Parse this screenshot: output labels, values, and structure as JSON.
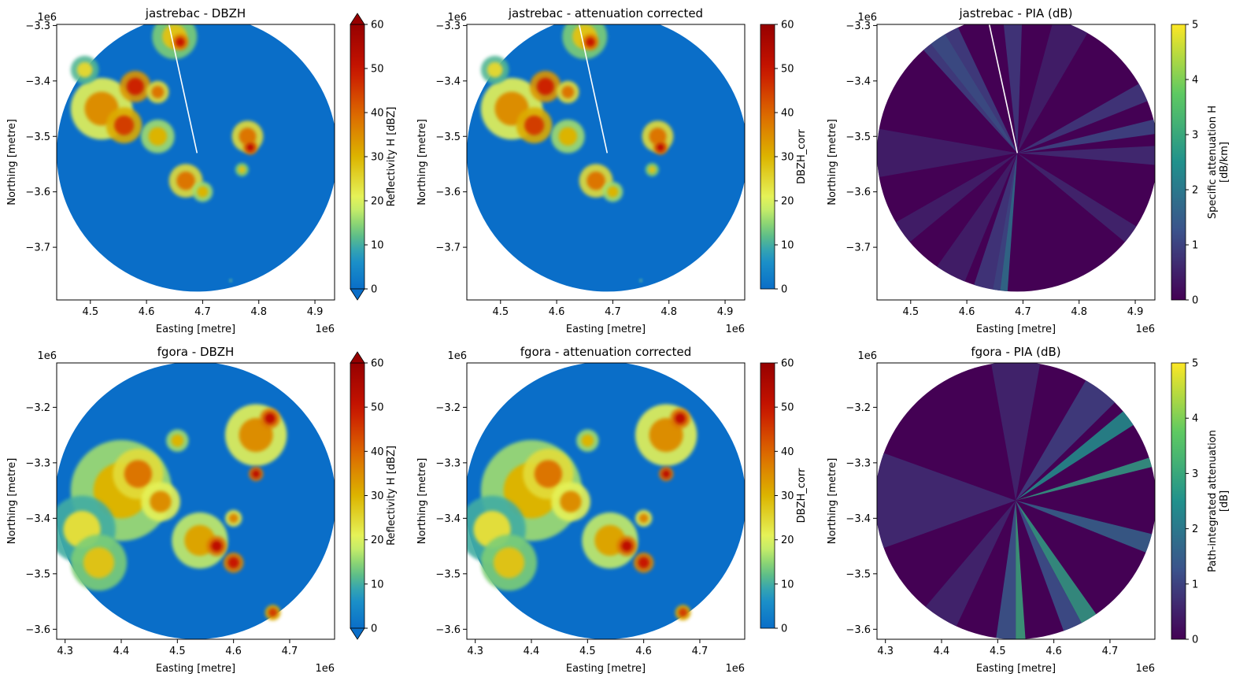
{
  "figure": {
    "colors": {
      "radar_background": "#0a6ec8",
      "axis": "#000000"
    }
  },
  "chart_data": [
    {
      "type": "heatmap",
      "title": "jastrebac - DBZH",
      "xlabel": "Easting [metre]",
      "ylabel": "Northing [metre]",
      "x_offset_label": "1e6",
      "y_offset_label": "1e6",
      "xlim": [
        4.44,
        4.935
      ],
      "ylim": [
        -3.795,
        -3.298
      ],
      "xticks": [
        "4.5",
        "4.6",
        "4.7",
        "4.8",
        "4.9"
      ],
      "xtick_values": [
        4.5,
        4.6,
        4.7,
        4.8,
        4.9
      ],
      "yticks": [
        "−3.3",
        "−3.4",
        "−3.5",
        "−3.6",
        "−3.7"
      ],
      "ytick_values": [
        -3.3,
        -3.4,
        -3.5,
        -3.6,
        -3.7
      ],
      "radar_center": [
        4.69,
        -3.53
      ],
      "radar_radius": 0.25,
      "colorbar": {
        "label": "Reflectivity H [dBZ]",
        "colormap": "reflectivity",
        "ticks": [
          "0",
          "10",
          "20",
          "30",
          "40",
          "50",
          "60"
        ],
        "range": [
          0,
          60
        ],
        "extend": true
      },
      "echo_cells": [
        {
          "x": 4.52,
          "y": -3.45,
          "r": 0.055,
          "value": 35
        },
        {
          "x": 4.58,
          "y": -3.41,
          "r": 0.028,
          "value": 48
        },
        {
          "x": 4.56,
          "y": -3.48,
          "r": 0.032,
          "value": 45
        },
        {
          "x": 4.65,
          "y": -3.32,
          "r": 0.04,
          "value": 28
        },
        {
          "x": 4.66,
          "y": -3.33,
          "r": 0.015,
          "value": 50
        },
        {
          "x": 4.49,
          "y": -3.38,
          "r": 0.025,
          "value": 25
        },
        {
          "x": 4.62,
          "y": -3.5,
          "r": 0.03,
          "value": 30
        },
        {
          "x": 4.67,
          "y": -3.58,
          "r": 0.03,
          "value": 38
        },
        {
          "x": 4.78,
          "y": -3.5,
          "r": 0.028,
          "value": 38
        },
        {
          "x": 4.785,
          "y": -3.52,
          "r": 0.013,
          "value": 52
        },
        {
          "x": 4.7,
          "y": -3.6,
          "r": 0.018,
          "value": 30
        },
        {
          "x": 4.77,
          "y": -3.56,
          "r": 0.012,
          "value": 28
        },
        {
          "x": 4.62,
          "y": -3.42,
          "r": 0.02,
          "value": 38
        },
        {
          "x": 4.75,
          "y": -3.76,
          "r": 0.003,
          "value": 22
        }
      ],
      "gap_beam_end": [
        4.64,
        -3.298
      ]
    },
    {
      "type": "heatmap",
      "title": "jastrebac - attenuation corrected",
      "xlabel": "Easting [metre]",
      "ylabel": "Northing [metre]",
      "x_offset_label": "1e6",
      "y_offset_label": "1e6",
      "xlim": [
        4.44,
        4.935
      ],
      "ylim": [
        -3.795,
        -3.298
      ],
      "xticks": [
        "4.5",
        "4.6",
        "4.7",
        "4.8",
        "4.9"
      ],
      "xtick_values": [
        4.5,
        4.6,
        4.7,
        4.8,
        4.9
      ],
      "yticks": [
        "−3.3",
        "−3.4",
        "−3.5",
        "−3.6",
        "−3.7"
      ],
      "ytick_values": [
        -3.3,
        -3.4,
        -3.5,
        -3.6,
        -3.7
      ],
      "radar_center": [
        4.69,
        -3.53
      ],
      "radar_radius": 0.25,
      "colorbar": {
        "label": "DBZH_corr",
        "colormap": "reflectivity",
        "ticks": [
          "0",
          "10",
          "20",
          "30",
          "40",
          "50",
          "60"
        ],
        "range": [
          0,
          60
        ],
        "extend": false
      },
      "echo_cells": [
        {
          "x": 4.52,
          "y": -3.45,
          "r": 0.055,
          "value": 35
        },
        {
          "x": 4.58,
          "y": -3.41,
          "r": 0.028,
          "value": 48
        },
        {
          "x": 4.56,
          "y": -3.48,
          "r": 0.032,
          "value": 45
        },
        {
          "x": 4.65,
          "y": -3.32,
          "r": 0.04,
          "value": 28
        },
        {
          "x": 4.66,
          "y": -3.33,
          "r": 0.015,
          "value": 50
        },
        {
          "x": 4.49,
          "y": -3.38,
          "r": 0.025,
          "value": 25
        },
        {
          "x": 4.62,
          "y": -3.5,
          "r": 0.03,
          "value": 30
        },
        {
          "x": 4.67,
          "y": -3.58,
          "r": 0.03,
          "value": 38
        },
        {
          "x": 4.78,
          "y": -3.5,
          "r": 0.028,
          "value": 38
        },
        {
          "x": 4.785,
          "y": -3.52,
          "r": 0.013,
          "value": 52
        },
        {
          "x": 4.7,
          "y": -3.6,
          "r": 0.018,
          "value": 30
        },
        {
          "x": 4.77,
          "y": -3.56,
          "r": 0.012,
          "value": 28
        },
        {
          "x": 4.62,
          "y": -3.42,
          "r": 0.02,
          "value": 38
        },
        {
          "x": 4.75,
          "y": -3.76,
          "r": 0.003,
          "value": 22
        }
      ],
      "gap_beam_end": [
        4.64,
        -3.298
      ]
    },
    {
      "type": "heatmap",
      "title": "jastrebac - PIA (dB)",
      "xlabel": "Easting [metre]",
      "ylabel": "Northing [metre]",
      "x_offset_label": "1e6",
      "y_offset_label": "1e6",
      "xlim": [
        4.44,
        4.935
      ],
      "ylim": [
        -3.795,
        -3.298
      ],
      "xticks": [
        "4.5",
        "4.6",
        "4.7",
        "4.8",
        "4.9"
      ],
      "xtick_values": [
        4.5,
        4.6,
        4.7,
        4.8,
        4.9
      ],
      "yticks": [
        "−3.3",
        "−3.4",
        "−3.5",
        "−3.6",
        "−3.7"
      ],
      "ytick_values": [
        -3.3,
        -3.4,
        -3.5,
        -3.6,
        -3.7
      ],
      "radar_center": [
        4.69,
        -3.53
      ],
      "radar_radius": 0.25,
      "colorbar": {
        "label": "Specific attenuation H [dB/km]",
        "colormap": "viridis",
        "ticks": [
          "0",
          "1",
          "2",
          "3",
          "4",
          "5"
        ],
        "range": [
          0,
          5
        ],
        "extend": false
      },
      "beams": [
        {
          "from_deg": 121,
          "to_deg": 128,
          "value": 2.2
        },
        {
          "from_deg": 115,
          "to_deg": 132,
          "value": 1.0
        },
        {
          "from_deg": 88,
          "to_deg": 96,
          "value": 0.9
        },
        {
          "from_deg": 8,
          "to_deg": 14,
          "value": 1.1
        },
        {
          "from_deg": 22,
          "to_deg": 30,
          "value": 0.9
        },
        {
          "from_deg": -5,
          "to_deg": 3,
          "value": 0.7
        },
        {
          "from_deg": -100,
          "to_deg": -94,
          "value": 1.9
        },
        {
          "from_deg": -108,
          "to_deg": -97,
          "value": 0.9
        },
        {
          "from_deg": -125,
          "to_deg": -112,
          "value": 0.5
        },
        {
          "from_deg": -150,
          "to_deg": -140,
          "value": 0.5
        },
        {
          "from_deg": -40,
          "to_deg": -32,
          "value": 0.6
        },
        {
          "from_deg": 170,
          "to_deg": 190,
          "value": 0.5
        },
        {
          "from_deg": 60,
          "to_deg": 75,
          "value": 0.5
        }
      ],
      "gap_beam_end": [
        4.64,
        -3.298
      ]
    },
    {
      "type": "heatmap",
      "title": "fgora - DBZH",
      "xlabel": "Easting [metre]",
      "ylabel": "Northing [metre]",
      "x_offset_label": "1e6",
      "y_offset_label": "1e6",
      "xlim": [
        4.285,
        4.78
      ],
      "ylim": [
        -3.618,
        -3.12
      ],
      "xticks": [
        "4.3",
        "4.4",
        "4.5",
        "4.6",
        "4.7"
      ],
      "xtick_values": [
        4.3,
        4.4,
        4.5,
        4.6,
        4.7
      ],
      "yticks": [
        "−3.2",
        "−3.3",
        "−3.4",
        "−3.5",
        "−3.6"
      ],
      "ytick_values": [
        -3.2,
        -3.3,
        -3.4,
        -3.5,
        -3.6
      ],
      "radar_center": [
        4.532,
        -3.368
      ],
      "radar_radius": 0.25,
      "colorbar": {
        "label": "Reflectivity H [dBZ]",
        "colormap": "reflectivity",
        "ticks": [
          "0",
          "10",
          "20",
          "30",
          "40",
          "50",
          "60"
        ],
        "range": [
          0,
          60
        ],
        "extend": true
      },
      "echo_cells": [
        {
          "x": 4.4,
          "y": -3.35,
          "r": 0.09,
          "value": 30
        },
        {
          "x": 4.33,
          "y": -3.42,
          "r": 0.06,
          "value": 24
        },
        {
          "x": 4.36,
          "y": -3.48,
          "r": 0.05,
          "value": 28
        },
        {
          "x": 4.43,
          "y": -3.32,
          "r": 0.045,
          "value": 38
        },
        {
          "x": 4.47,
          "y": -3.37,
          "r": 0.035,
          "value": 35
        },
        {
          "x": 4.54,
          "y": -3.44,
          "r": 0.05,
          "value": 32
        },
        {
          "x": 4.57,
          "y": -3.45,
          "r": 0.018,
          "value": 52
        },
        {
          "x": 4.6,
          "y": -3.48,
          "r": 0.018,
          "value": 50
        },
        {
          "x": 4.64,
          "y": -3.25,
          "r": 0.055,
          "value": 35
        },
        {
          "x": 4.665,
          "y": -3.22,
          "r": 0.018,
          "value": 52
        },
        {
          "x": 4.64,
          "y": -3.32,
          "r": 0.013,
          "value": 52
        },
        {
          "x": 4.67,
          "y": -3.57,
          "r": 0.014,
          "value": 45
        },
        {
          "x": 4.5,
          "y": -3.26,
          "r": 0.02,
          "value": 30
        },
        {
          "x": 4.6,
          "y": -3.4,
          "r": 0.015,
          "value": 36
        }
      ]
    },
    {
      "type": "heatmap",
      "title": "fgora - attenuation corrected",
      "xlabel": "Easting [metre]",
      "ylabel": "Northing [metre]",
      "x_offset_label": "1e6",
      "y_offset_label": "1e6",
      "xlim": [
        4.285,
        4.78
      ],
      "ylim": [
        -3.618,
        -3.12
      ],
      "xticks": [
        "4.3",
        "4.4",
        "4.5",
        "4.6",
        "4.7"
      ],
      "xtick_values": [
        4.3,
        4.4,
        4.5,
        4.6,
        4.7
      ],
      "yticks": [
        "−3.2",
        "−3.3",
        "−3.4",
        "−3.5",
        "−3.6"
      ],
      "ytick_values": [
        -3.2,
        -3.3,
        -3.4,
        -3.5,
        -3.6
      ],
      "radar_center": [
        4.532,
        -3.368
      ],
      "radar_radius": 0.25,
      "colorbar": {
        "label": "DBZH_corr",
        "colormap": "reflectivity",
        "ticks": [
          "0",
          "10",
          "20",
          "30",
          "40",
          "50",
          "60"
        ],
        "range": [
          0,
          60
        ],
        "extend": false
      },
      "echo_cells": [
        {
          "x": 4.4,
          "y": -3.35,
          "r": 0.09,
          "value": 30
        },
        {
          "x": 4.33,
          "y": -3.42,
          "r": 0.06,
          "value": 24
        },
        {
          "x": 4.36,
          "y": -3.48,
          "r": 0.05,
          "value": 28
        },
        {
          "x": 4.43,
          "y": -3.32,
          "r": 0.045,
          "value": 38
        },
        {
          "x": 4.47,
          "y": -3.37,
          "r": 0.035,
          "value": 35
        },
        {
          "x": 4.54,
          "y": -3.44,
          "r": 0.05,
          "value": 32
        },
        {
          "x": 4.57,
          "y": -3.45,
          "r": 0.018,
          "value": 52
        },
        {
          "x": 4.6,
          "y": -3.48,
          "r": 0.018,
          "value": 50
        },
        {
          "x": 4.64,
          "y": -3.25,
          "r": 0.055,
          "value": 35
        },
        {
          "x": 4.665,
          "y": -3.22,
          "r": 0.018,
          "value": 52
        },
        {
          "x": 4.64,
          "y": -3.32,
          "r": 0.013,
          "value": 52
        },
        {
          "x": 4.67,
          "y": -3.57,
          "r": 0.014,
          "value": 45
        },
        {
          "x": 4.5,
          "y": -3.26,
          "r": 0.02,
          "value": 30
        },
        {
          "x": 4.6,
          "y": -3.4,
          "r": 0.015,
          "value": 36
        }
      ]
    },
    {
      "type": "heatmap",
      "title": "fgora - PIA (dB)",
      "xlabel": "Easting [metre]",
      "ylabel": "Northing [metre]",
      "x_offset_label": "1e6",
      "y_offset_label": "1e6",
      "xlim": [
        4.285,
        4.78
      ],
      "ylim": [
        -3.618,
        -3.12
      ],
      "xticks": [
        "4.3",
        "4.4",
        "4.5",
        "4.6",
        "4.7"
      ],
      "xtick_values": [
        4.3,
        4.4,
        4.5,
        4.6,
        4.7
      ],
      "yticks": [
        "−3.2",
        "−3.3",
        "−3.4",
        "−3.5",
        "−3.6"
      ],
      "ytick_values": [
        -3.2,
        -3.3,
        -3.4,
        -3.5,
        -3.6
      ],
      "radar_center": [
        4.532,
        -3.368
      ],
      "radar_radius": 0.25,
      "colorbar": {
        "label": "Path-integrated attenuation [dB]",
        "colormap": "viridis",
        "ticks": [
          "0",
          "1",
          "2",
          "3",
          "4",
          "5"
        ],
        "range": [
          0,
          5
        ],
        "extend": false
      },
      "beams": [
        {
          "from_deg": 33,
          "to_deg": 40,
          "value": 2.5
        },
        {
          "from_deg": 14,
          "to_deg": 18,
          "value": 2.8
        },
        {
          "from_deg": -22,
          "to_deg": -14,
          "value": 1.6
        },
        {
          "from_deg": -62,
          "to_deg": -55,
          "value": 2.8
        },
        {
          "from_deg": -70,
          "to_deg": -62,
          "value": 1.3
        },
        {
          "from_deg": -90,
          "to_deg": -86,
          "value": 3.0
        },
        {
          "from_deg": -98,
          "to_deg": -90,
          "value": 1.4
        },
        {
          "from_deg": 160,
          "to_deg": 200,
          "value": 0.7
        },
        {
          "from_deg": 80,
          "to_deg": 100,
          "value": 0.6
        },
        {
          "from_deg": 45,
          "to_deg": 60,
          "value": 1.0
        },
        {
          "from_deg": -130,
          "to_deg": -115,
          "value": 0.6
        }
      ]
    }
  ]
}
